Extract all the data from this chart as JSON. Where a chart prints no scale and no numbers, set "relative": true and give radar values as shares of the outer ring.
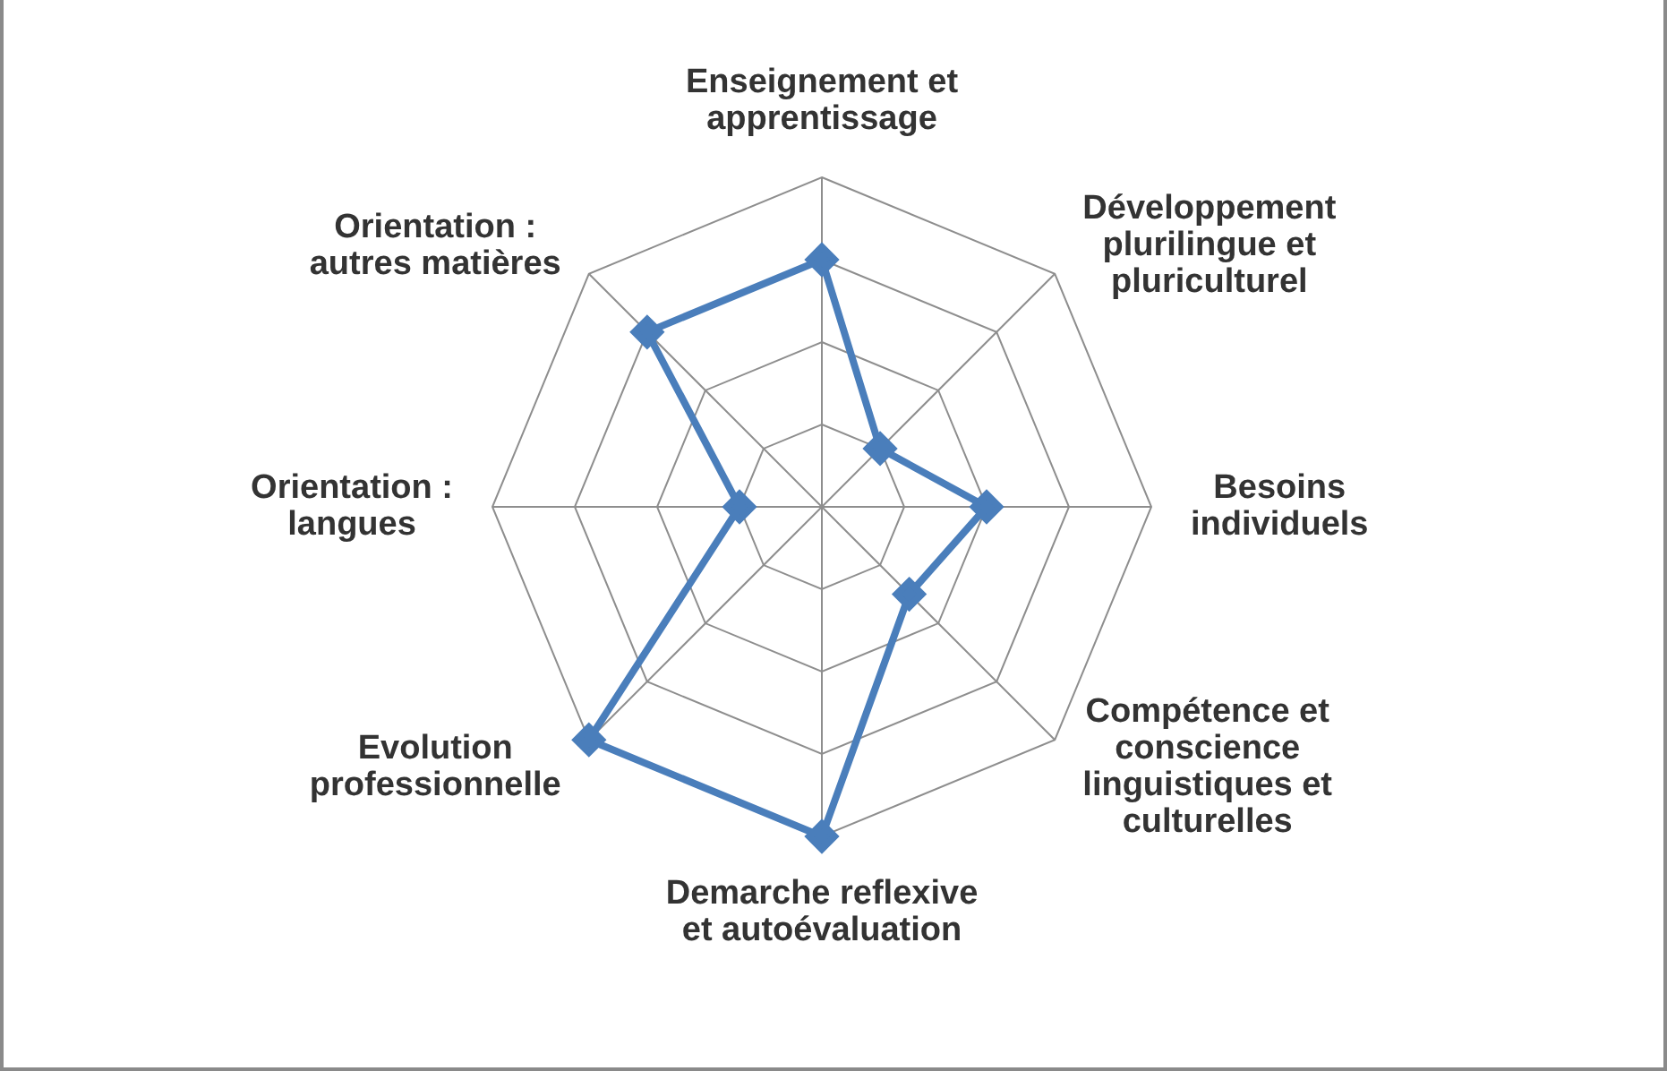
{
  "chart_data": {
    "type": "radar",
    "relative": true,
    "grid": true,
    "marker": "diamond",
    "categories": [
      "Enseignement et apprentissage",
      "Développement plurilingue et pluriculturel",
      "Besoins individuels",
      "Compétence et conscience linguistiques et culturelles",
      "Demarche reflexive et autoévaluation",
      "Evolution professionnelle",
      "Orientation : langues",
      "Orientation : autres matières"
    ],
    "series": [
      {
        "color": "#4a7ebb",
        "values": [
          0.75,
          0.25,
          0.5,
          0.375,
          1,
          1,
          0.25,
          0.75
        ]
      }
    ]
  }
}
